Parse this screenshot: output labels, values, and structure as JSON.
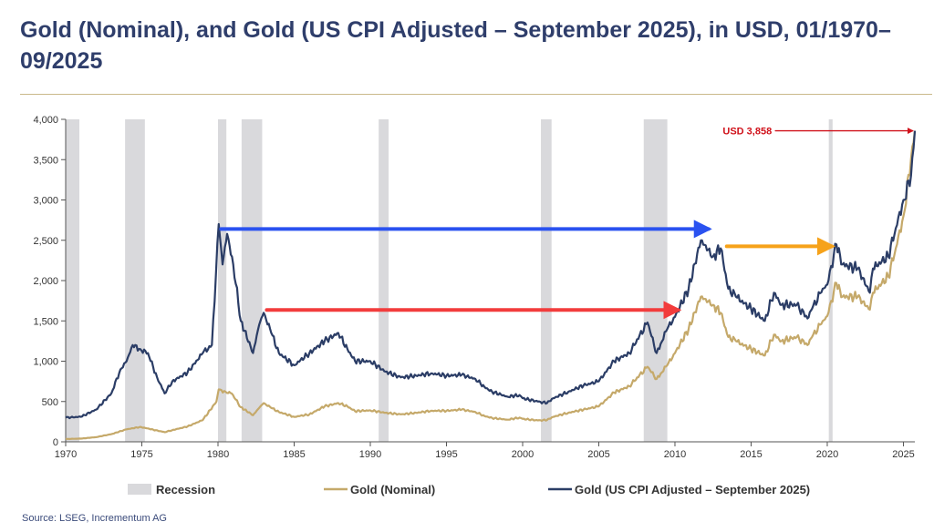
{
  "title": "Gold (Nominal), and Gold (US CPI Adjusted – September 2025), in USD, 01/1970–09/2025",
  "source": "Source: LSEG, Incrementum AG",
  "colors": {
    "title": "#2f3e6b",
    "nominal": "#c5a96a",
    "real": "#2b3d66",
    "recession": "#d9d9dc",
    "blue_arrow": "#2a52f0",
    "red_arrow": "#f23c3c",
    "orange_arrow": "#f6a21a",
    "annotation": "#d0121b"
  },
  "chart_data": {
    "type": "line",
    "xlabel": "",
    "ylabel": "",
    "xlim": [
      1970,
      2025.75
    ],
    "ylim": [
      0,
      4000
    ],
    "xticks": [
      1970,
      1975,
      1980,
      1985,
      1990,
      1995,
      2000,
      2005,
      2010,
      2015,
      2020,
      2025
    ],
    "yticks": [
      0,
      500,
      1000,
      1500,
      2000,
      2500,
      3000,
      3500,
      4000
    ],
    "ytick_labels": [
      "0",
      "500",
      "1,000",
      "1,500",
      "2,000",
      "2,500",
      "3,000",
      "3,500",
      "4,000"
    ],
    "recessions": [
      [
        1970.0,
        1970.9
      ],
      [
        1973.9,
        1975.2
      ],
      [
        1980.0,
        1980.55
      ],
      [
        1981.55,
        1982.9
      ],
      [
        1990.55,
        1991.2
      ],
      [
        2001.2,
        2001.9
      ],
      [
        2007.95,
        2009.5
      ],
      [
        2020.1,
        2020.35
      ]
    ],
    "legend": [
      "Recession",
      "Gold (Nominal)",
      "Gold (US CPI Adjusted – September 2025)"
    ],
    "series": [
      {
        "name": "Gold (Nominal)",
        "points": [
          [
            1970,
            35
          ],
          [
            1971,
            40
          ],
          [
            1972,
            58
          ],
          [
            1973,
            95
          ],
          [
            1974,
            155
          ],
          [
            1974.9,
            185
          ],
          [
            1975.5,
            160
          ],
          [
            1976.5,
            120
          ],
          [
            1977,
            145
          ],
          [
            1978,
            190
          ],
          [
            1979,
            270
          ],
          [
            1979.9,
            500
          ],
          [
            1980.05,
            650
          ],
          [
            1980.5,
            620
          ],
          [
            1980.9,
            600
          ],
          [
            1981.5,
            430
          ],
          [
            1982.3,
            330
          ],
          [
            1982.7,
            420
          ],
          [
            1983,
            480
          ],
          [
            1983.5,
            420
          ],
          [
            1984,
            370
          ],
          [
            1985,
            310
          ],
          [
            1986,
            340
          ],
          [
            1987,
            440
          ],
          [
            1987.9,
            480
          ],
          [
            1988.5,
            440
          ],
          [
            1989,
            380
          ],
          [
            1990,
            390
          ],
          [
            1991,
            360
          ],
          [
            1992,
            340
          ],
          [
            1993,
            360
          ],
          [
            1994,
            385
          ],
          [
            1995,
            385
          ],
          [
            1996,
            400
          ],
          [
            1996.9,
            370
          ],
          [
            1997.5,
            320
          ],
          [
            1998,
            295
          ],
          [
            1999,
            275
          ],
          [
            1999.8,
            300
          ],
          [
            2000,
            285
          ],
          [
            2001,
            265
          ],
          [
            2001.6,
            270
          ],
          [
            2002,
            310
          ],
          [
            2003,
            360
          ],
          [
            2004,
            400
          ],
          [
            2005,
            440
          ],
          [
            2006,
            610
          ],
          [
            2007,
            690
          ],
          [
            2008.2,
            930
          ],
          [
            2008.8,
            780
          ],
          [
            2009.5,
            950
          ],
          [
            2010,
            1100
          ],
          [
            2010.9,
            1400
          ],
          [
            2011.7,
            1800
          ],
          [
            2012.5,
            1700
          ],
          [
            2013,
            1600
          ],
          [
            2013.5,
            1300
          ],
          [
            2014,
            1250
          ],
          [
            2015,
            1150
          ],
          [
            2015.9,
            1070
          ],
          [
            2016.5,
            1330
          ],
          [
            2017,
            1250
          ],
          [
            2018,
            1300
          ],
          [
            2018.7,
            1200
          ],
          [
            2019,
            1300
          ],
          [
            2019.7,
            1500
          ],
          [
            2020,
            1560
          ],
          [
            2020.6,
            1970
          ],
          [
            2021,
            1800
          ],
          [
            2022,
            1800
          ],
          [
            2022.8,
            1640
          ],
          [
            2023,
            1850
          ],
          [
            2024,
            2050
          ],
          [
            2024.5,
            2400
          ],
          [
            2025,
            2800
          ],
          [
            2025.75,
            3858
          ]
        ]
      },
      {
        "name": "Gold (US CPI Adjusted – September 2025)",
        "points": [
          [
            1970,
            300
          ],
          [
            1971,
            310
          ],
          [
            1972,
            400
          ],
          [
            1973,
            600
          ],
          [
            1973.6,
            900
          ],
          [
            1974,
            1000
          ],
          [
            1974.4,
            1200
          ],
          [
            1974.9,
            1150
          ],
          [
            1975.4,
            1100
          ],
          [
            1976,
            800
          ],
          [
            1976.5,
            600
          ],
          [
            1977,
            750
          ],
          [
            1978,
            860
          ],
          [
            1979,
            1100
          ],
          [
            1979.6,
            1200
          ],
          [
            1980.05,
            2700
          ],
          [
            1980.3,
            2200
          ],
          [
            1980.6,
            2580
          ],
          [
            1981,
            2200
          ],
          [
            1981.5,
            1500
          ],
          [
            1982.3,
            1100
          ],
          [
            1982.7,
            1450
          ],
          [
            1983,
            1600
          ],
          [
            1983.5,
            1350
          ],
          [
            1984,
            1100
          ],
          [
            1985,
            950
          ],
          [
            1986,
            1100
          ],
          [
            1987,
            1250
          ],
          [
            1987.9,
            1350
          ],
          [
            1988.5,
            1150
          ],
          [
            1989,
            1000
          ],
          [
            1990,
            1000
          ],
          [
            1991,
            870
          ],
          [
            1992,
            800
          ],
          [
            1993,
            820
          ],
          [
            1994,
            850
          ],
          [
            1995,
            820
          ],
          [
            1996,
            830
          ],
          [
            1996.9,
            780
          ],
          [
            1997.5,
            680
          ],
          [
            1998,
            620
          ],
          [
            1999,
            560
          ],
          [
            1999.8,
            580
          ],
          [
            2000,
            540
          ],
          [
            2001,
            500
          ],
          [
            2001.6,
            480
          ],
          [
            2002,
            540
          ],
          [
            2003,
            620
          ],
          [
            2004,
            700
          ],
          [
            2005,
            750
          ],
          [
            2006,
            1000
          ],
          [
            2007,
            1100
          ],
          [
            2008.2,
            1480
          ],
          [
            2008.8,
            1100
          ],
          [
            2009.5,
            1400
          ],
          [
            2010,
            1550
          ],
          [
            2010.9,
            1900
          ],
          [
            2011.7,
            2500
          ],
          [
            2012.5,
            2300
          ],
          [
            2013,
            2400
          ],
          [
            2013.5,
            1900
          ],
          [
            2014,
            1800
          ],
          [
            2015,
            1650
          ],
          [
            2015.9,
            1500
          ],
          [
            2016.5,
            1850
          ],
          [
            2017,
            1700
          ],
          [
            2018,
            1700
          ],
          [
            2018.7,
            1530
          ],
          [
            2019,
            1650
          ],
          [
            2019.7,
            1900
          ],
          [
            2020,
            1950
          ],
          [
            2020.6,
            2450
          ],
          [
            2021,
            2200
          ],
          [
            2022,
            2150
          ],
          [
            2022.8,
            1850
          ],
          [
            2023,
            2150
          ],
          [
            2024,
            2300
          ],
          [
            2024.5,
            2650
          ],
          [
            2025,
            3000
          ],
          [
            2025.5,
            3300
          ],
          [
            2025.75,
            3858
          ]
        ]
      }
    ],
    "annotations": [
      {
        "label": "USD 3,858",
        "type": "arrow",
        "from": [
          2016.6,
          3858
        ],
        "to": [
          2025.6,
          3858
        ],
        "color": "#d0121b"
      },
      {
        "label": "",
        "type": "arrow",
        "from": [
          1980.2,
          2640
        ],
        "to": [
          2012.2,
          2640
        ],
        "color": "#2a52f0"
      },
      {
        "label": "",
        "type": "arrow",
        "from": [
          1983.2,
          1635
        ],
        "to": [
          2010.2,
          1635
        ],
        "color": "#f23c3c"
      },
      {
        "label": "",
        "type": "arrow",
        "from": [
          2013.4,
          2425
        ],
        "to": [
          2020.3,
          2425
        ],
        "color": "#f6a21a"
      }
    ]
  }
}
